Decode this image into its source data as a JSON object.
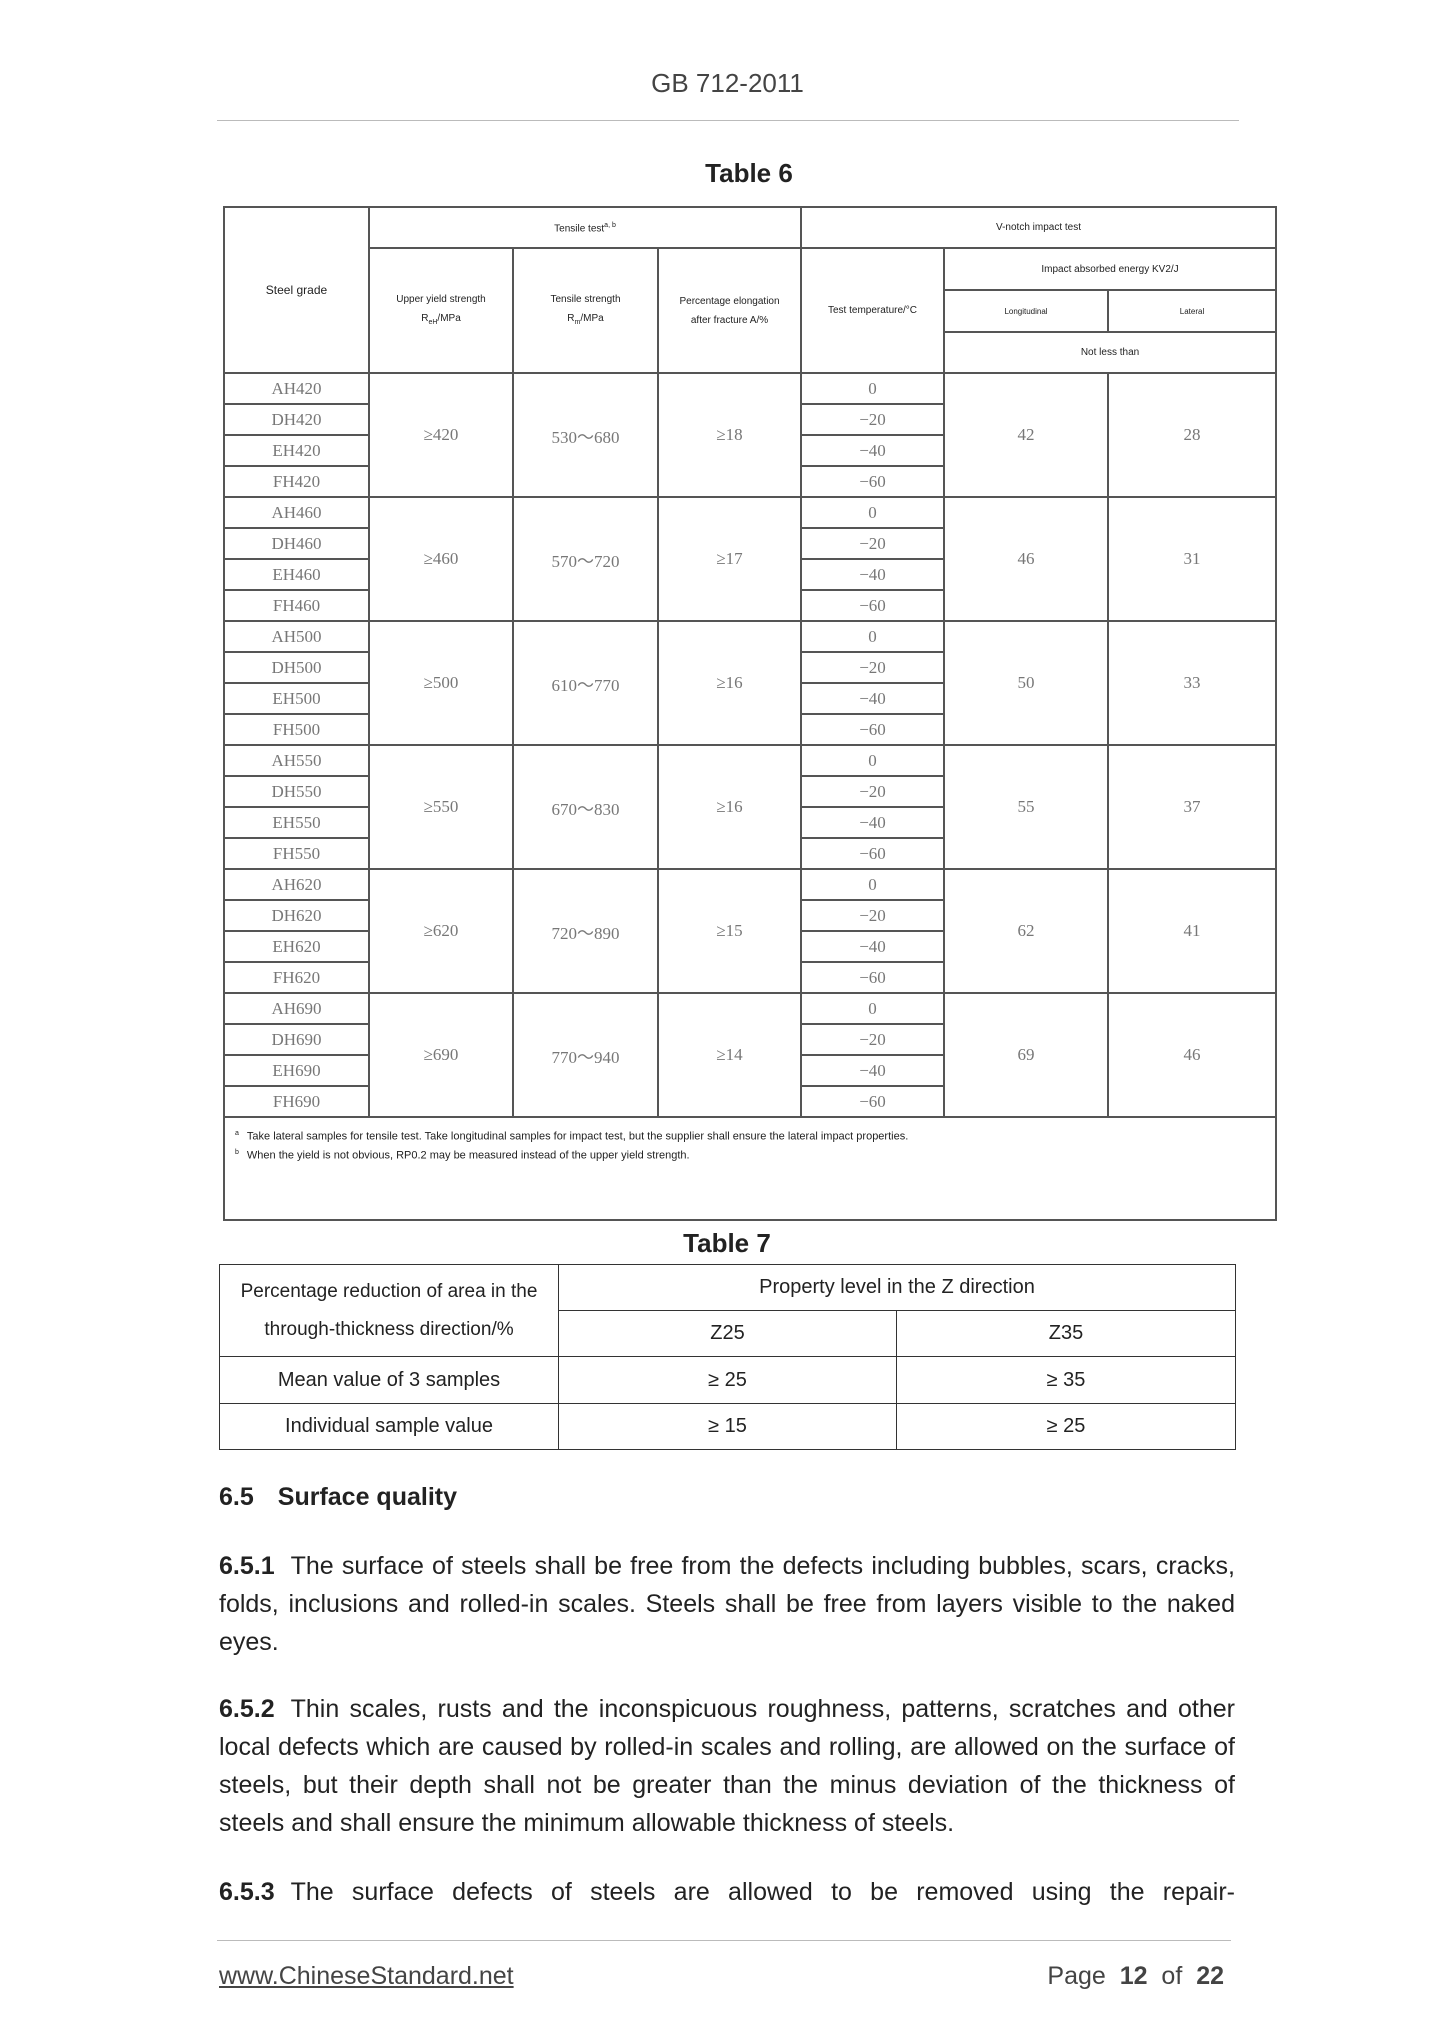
{
  "header": {
    "doc_id": "GB 712-2011"
  },
  "table6": {
    "title": "Table 6",
    "headers": {
      "steel_grade": "Steel grade",
      "tensile_test": "Tensile test",
      "tensile_sup": "a, b",
      "upper_yield": "Upper yield strength",
      "upper_yield_unit_main": "R",
      "upper_yield_unit_sub": "eH",
      "upper_yield_unit_tail": "/MPa",
      "tensile_strength": "Tensile strength",
      "tensile_unit_main": "R",
      "tensile_unit_sub": "m",
      "tensile_unit_tail": "/MPa",
      "elongation": "Percentage elongation",
      "elongation_2": "after fracture A/%",
      "vnotch": "V-notch impact test",
      "test_temp": "Test temperature/°C",
      "impact_energy": "Impact absorbed energy KV2/J",
      "longitudinal": "Longitudinal",
      "lateral": "Lateral",
      "not_less_than": "Not less than"
    },
    "temperatures": [
      "0",
      "−20",
      "−40",
      "−60"
    ],
    "groups": [
      {
        "grades": [
          "AH420",
          "DH420",
          "EH420",
          "FH420"
        ],
        "yield": "≥420",
        "tensile": "530～680",
        "elongation": "≥18",
        "longitudinal": "42",
        "lateral": "28"
      },
      {
        "grades": [
          "AH460",
          "DH460",
          "EH460",
          "FH460"
        ],
        "yield": "≥460",
        "tensile": "570～720",
        "elongation": "≥17",
        "longitudinal": "46",
        "lateral": "31"
      },
      {
        "grades": [
          "AH500",
          "DH500",
          "EH500",
          "FH500"
        ],
        "yield": "≥500",
        "tensile": "610～770",
        "elongation": "≥16",
        "longitudinal": "50",
        "lateral": "33"
      },
      {
        "grades": [
          "AH550",
          "DH550",
          "EH550",
          "FH550"
        ],
        "yield": "≥550",
        "tensile": "670～830",
        "elongation": "≥16",
        "longitudinal": "55",
        "lateral": "37"
      },
      {
        "grades": [
          "AH620",
          "DH620",
          "EH620",
          "FH620"
        ],
        "yield": "≥620",
        "tensile": "720～890",
        "elongation": "≥15",
        "longitudinal": "62",
        "lateral": "41"
      },
      {
        "grades": [
          "AH690",
          "DH690",
          "EH690",
          "FH690"
        ],
        "yield": "≥690",
        "tensile": "770～940",
        "elongation": "≥14",
        "longitudinal": "69",
        "lateral": "46"
      }
    ],
    "footnotes": [
      {
        "mark": "a",
        "text": "Take lateral samples for tensile test. Take longitudinal samples for impact test, but the supplier shall ensure the lateral impact properties."
      },
      {
        "mark": "b",
        "text": "When the yield is not obvious, RP0.2 may be measured instead of the upper yield strength."
      }
    ]
  },
  "table7": {
    "title": "Table 7",
    "row_header_1": "Percentage reduction of area in the",
    "row_header_2": "through-thickness direction/%",
    "property_level": "Property level in the Z direction",
    "levels": [
      "Z25",
      "Z35"
    ],
    "rows": [
      {
        "label": "Mean value of 3 samples",
        "values": [
          "≥ 25",
          "≥ 35"
        ]
      },
      {
        "label": "Individual sample value",
        "values": [
          "≥ 15",
          "≥ 25"
        ]
      }
    ]
  },
  "section": {
    "heading_num": "6.5",
    "heading": "Surface quality",
    "paragraphs": [
      {
        "num": "6.5.1",
        "text": "The surface of steels shall be free from the defects including bubbles, scars, cracks, folds, inclusions and rolled-in scales. Steels shall be free from layers visible to the naked eyes."
      },
      {
        "num": "6.5.2",
        "text": "Thin scales, rusts and the inconspicuous roughness, patterns, scratches and other local defects which are caused by rolled-in scales and rolling, are allowed on the surface of steels, but their depth shall not be greater than the minus deviation of the thickness of steels and shall ensure the minimum allowable thickness of steels."
      },
      {
        "num": "6.5.3",
        "text": "The surface defects of steels are allowed to be removed using the repair-"
      }
    ]
  },
  "footer": {
    "link": "www.ChineseStandard.net",
    "page_label": "Page",
    "page": "12",
    "of_label": "of",
    "total": "22"
  }
}
